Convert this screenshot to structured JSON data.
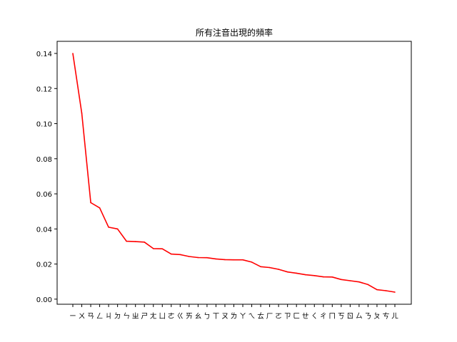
{
  "chart_data": {
    "type": "line",
    "title": "所有注音出現的頻率",
    "xlabel": "",
    "ylabel": "",
    "categories": [
      "ㄧ",
      "ㄨ",
      "ㄢ",
      "ㄥ",
      "ㄐ",
      "ㄉ",
      "ㄣ",
      "ㄓ",
      "ㄕ",
      "ㄤ",
      "ㄩ",
      "ㄜ",
      "ㄍ",
      "ㄞ",
      "ㄠ",
      "ㄅ",
      "ㄒ",
      "ㄡ",
      "ㄌ",
      "ㄚ",
      "ㄟ",
      "ㄊ",
      "ㄏ",
      "ㄛ",
      "ㄗ",
      "ㄈ",
      "ㄝ",
      "ㄑ",
      "ㄔ",
      "ㄇ",
      "ㄎ",
      "ㄖ",
      "ㄙ",
      "ㄋ",
      "ㄆ",
      "ㄘ",
      "ㄦ"
    ],
    "values": [
      0.14,
      0.106,
      0.055,
      0.052,
      0.041,
      0.04,
      0.033,
      0.0328,
      0.0325,
      0.0288,
      0.0287,
      0.0257,
      0.0254,
      0.0243,
      0.0237,
      0.0236,
      0.0229,
      0.0225,
      0.0224,
      0.0224,
      0.0211,
      0.0185,
      0.018,
      0.017,
      0.0155,
      0.0148,
      0.0139,
      0.0134,
      0.0127,
      0.0126,
      0.0112,
      0.0105,
      0.0098,
      0.0083,
      0.0054,
      0.0048,
      0.004
    ],
    "ylim": [
      -0.0029,
      0.1469
    ],
    "yticks": [
      "0.00",
      "0.02",
      "0.04",
      "0.06",
      "0.08",
      "0.10",
      "0.12",
      "0.14"
    ],
    "ytick_values": [
      0.0,
      0.02,
      0.04,
      0.06,
      0.08,
      0.1,
      0.12,
      0.14
    ],
    "grid": false,
    "line_color": "#ff0000"
  }
}
